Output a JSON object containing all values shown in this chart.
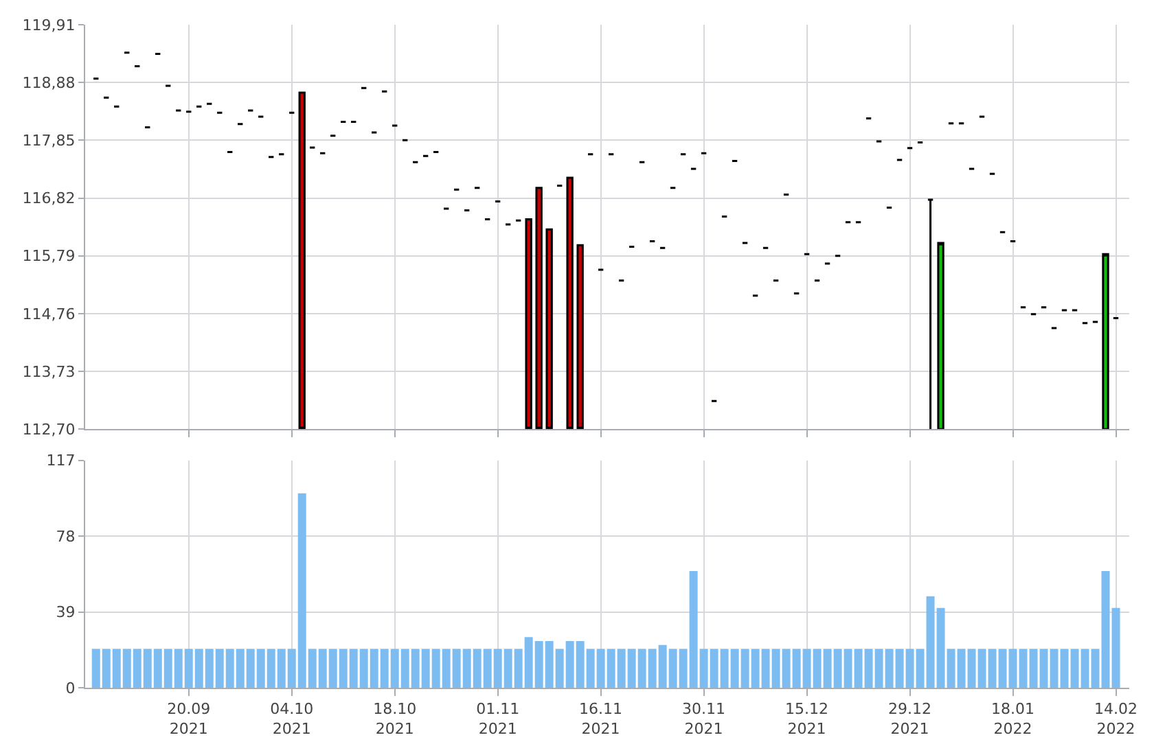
{
  "chart_data": [
    {
      "type": "candlestick",
      "categories": [
        null,
        null,
        null,
        null,
        null,
        null,
        null,
        null,
        null,
        null,
        null,
        null,
        null,
        null,
        null,
        null,
        null,
        null,
        null,
        null,
        null,
        null,
        null,
        null,
        null,
        null,
        null,
        null,
        null,
        null,
        null,
        null,
        null,
        null,
        null,
        null,
        null,
        null,
        null,
        null,
        null,
        null,
        null,
        null,
        null,
        null,
        null,
        null,
        null,
        null,
        null,
        null,
        null,
        null,
        null,
        null,
        null,
        null,
        null,
        null,
        null,
        null,
        null,
        null,
        null,
        null,
        null,
        null,
        null,
        null,
        null,
        null,
        null,
        null,
        null,
        null,
        null,
        null,
        null,
        null,
        null,
        null,
        null,
        null,
        null,
        null,
        null,
        null,
        null,
        null,
        null,
        null,
        null,
        null,
        null,
        null,
        null,
        null,
        null,
        null
      ],
      "ohlc": [
        [
          118.95,
          118.95,
          118.95,
          118.95
        ],
        [
          118.61,
          118.61,
          118.61,
          118.61
        ],
        [
          118.45,
          118.45,
          118.45,
          118.45
        ],
        [
          119.41,
          119.41,
          119.41,
          119.41
        ],
        [
          119.17,
          119.17,
          119.17,
          119.17
        ],
        [
          118.08,
          118.08,
          118.08,
          118.08
        ],
        [
          119.39,
          119.39,
          119.39,
          119.39
        ],
        [
          118.82,
          118.82,
          118.82,
          118.82
        ],
        [
          118.38,
          118.38,
          118.38,
          118.38
        ],
        [
          118.36,
          118.36,
          118.36,
          118.36
        ],
        [
          118.45,
          118.45,
          118.45,
          118.45
        ],
        [
          118.5,
          118.5,
          118.5,
          118.5
        ],
        [
          118.34,
          118.34,
          118.34,
          118.34
        ],
        [
          117.64,
          117.64,
          117.64,
          117.64
        ],
        [
          118.14,
          118.14,
          118.14,
          118.14
        ],
        [
          118.38,
          118.38,
          118.38,
          118.38
        ],
        [
          118.27,
          118.27,
          118.27,
          118.27
        ],
        [
          117.55,
          117.55,
          117.55,
          117.55
        ],
        [
          117.6,
          117.6,
          117.6,
          117.6
        ],
        [
          118.34,
          118.34,
          118.34,
          118.34
        ],
        [
          118.7,
          118.7,
          112.7,
          112.7
        ],
        [
          117.72,
          117.72,
          117.72,
          117.72
        ],
        [
          117.62,
          117.62,
          117.62,
          117.62
        ],
        [
          117.93,
          117.93,
          117.93,
          117.93
        ],
        [
          118.18,
          118.18,
          118.18,
          118.18
        ],
        [
          118.18,
          118.18,
          118.18,
          118.18
        ],
        [
          118.78,
          118.78,
          118.78,
          118.78
        ],
        [
          117.99,
          117.99,
          117.99,
          117.99
        ],
        [
          118.72,
          118.72,
          118.72,
          118.72
        ],
        [
          118.11,
          118.11,
          118.11,
          118.11
        ],
        [
          117.85,
          117.85,
          117.85,
          117.85
        ],
        [
          117.46,
          117.46,
          117.46,
          117.46
        ],
        [
          117.57,
          117.57,
          117.57,
          117.57
        ],
        [
          117.64,
          117.64,
          117.64,
          117.64
        ],
        [
          116.63,
          116.63,
          116.63,
          116.63
        ],
        [
          116.97,
          116.97,
          116.97,
          116.97
        ],
        [
          116.6,
          116.6,
          116.6,
          116.6
        ],
        [
          117.0,
          117.0,
          117.0,
          117.0
        ],
        [
          116.44,
          116.44,
          116.44,
          116.44
        ],
        [
          116.76,
          116.76,
          116.76,
          116.76
        ],
        [
          116.35,
          116.35,
          116.35,
          116.35
        ],
        [
          116.42,
          116.42,
          116.42,
          116.42
        ],
        [
          116.44,
          116.44,
          112.7,
          112.7
        ],
        [
          117.0,
          117.0,
          112.7,
          112.7
        ],
        [
          116.26,
          116.26,
          112.7,
          112.7
        ],
        [
          117.04,
          117.04,
          117.04,
          117.04
        ],
        [
          117.18,
          117.18,
          112.7,
          112.7
        ],
        [
          115.98,
          115.98,
          112.7,
          112.7
        ],
        [
          117.6,
          117.6,
          117.6,
          117.6
        ],
        [
          115.54,
          115.54,
          115.54,
          115.54
        ],
        [
          117.6,
          117.6,
          117.6,
          117.6
        ],
        [
          115.35,
          115.35,
          115.35,
          115.35
        ],
        [
          115.95,
          115.95,
          115.95,
          115.95
        ],
        [
          117.46,
          117.46,
          117.46,
          117.46
        ],
        [
          116.05,
          116.05,
          116.05,
          116.05
        ],
        [
          115.93,
          115.93,
          115.93,
          115.93
        ],
        [
          117.0,
          117.0,
          117.0,
          117.0
        ],
        [
          117.6,
          117.6,
          117.6,
          117.6
        ],
        [
          117.34,
          117.34,
          117.34,
          117.34
        ],
        [
          117.62,
          117.62,
          117.62,
          117.62
        ],
        [
          113.2,
          113.2,
          113.2,
          113.2
        ],
        [
          116.49,
          116.49,
          116.49,
          116.49
        ],
        [
          117.48,
          117.48,
          117.48,
          117.48
        ],
        [
          116.02,
          116.02,
          116.02,
          116.02
        ],
        [
          115.08,
          115.08,
          115.08,
          115.08
        ],
        [
          115.93,
          115.93,
          115.93,
          115.93
        ],
        [
          115.35,
          115.35,
          115.35,
          115.35
        ],
        [
          116.88,
          116.88,
          116.88,
          116.88
        ],
        [
          115.12,
          115.12,
          115.12,
          115.12
        ],
        [
          115.82,
          115.82,
          115.82,
          115.82
        ],
        [
          115.35,
          115.35,
          115.35,
          115.35
        ],
        [
          115.65,
          115.65,
          115.65,
          115.65
        ],
        [
          115.79,
          115.79,
          115.79,
          115.79
        ],
        [
          116.39,
          116.39,
          116.39,
          116.39
        ],
        [
          116.39,
          116.39,
          116.39,
          116.39
        ],
        [
          118.24,
          118.24,
          118.24,
          118.24
        ],
        [
          117.83,
          117.83,
          117.83,
          117.83
        ],
        [
          116.65,
          116.65,
          116.65,
          116.65
        ],
        [
          117.5,
          117.5,
          117.5,
          117.5
        ],
        [
          117.71,
          117.71,
          117.71,
          117.71
        ],
        [
          117.81,
          117.81,
          117.81,
          117.81
        ],
        [
          116.79,
          116.79,
          112.7,
          116.79
        ],
        [
          112.7,
          116.02,
          112.7,
          116.02
        ],
        [
          118.15,
          118.15,
          118.15,
          118.15
        ],
        [
          118.15,
          118.15,
          118.15,
          118.15
        ],
        [
          117.34,
          117.34,
          117.34,
          117.34
        ],
        [
          118.27,
          118.27,
          118.27,
          118.27
        ],
        [
          117.25,
          117.25,
          117.25,
          117.25
        ],
        [
          116.21,
          116.21,
          116.21,
          116.21
        ],
        [
          116.05,
          116.05,
          116.05,
          116.05
        ],
        [
          114.87,
          114.87,
          114.87,
          114.87
        ],
        [
          114.75,
          114.75,
          114.75,
          114.75
        ],
        [
          114.87,
          114.87,
          114.87,
          114.87
        ],
        [
          114.5,
          114.5,
          114.5,
          114.5
        ],
        [
          114.82,
          114.82,
          114.82,
          114.82
        ],
        [
          114.82,
          114.82,
          114.82,
          114.82
        ],
        [
          114.59,
          114.59,
          114.59,
          114.59
        ],
        [
          114.61,
          114.61,
          114.61,
          114.61
        ],
        [
          112.7,
          115.82,
          112.7,
          115.82
        ],
        [
          114.68,
          114.68,
          114.68,
          114.68
        ]
      ],
      "colors": [
        "#000000",
        "#000000",
        "#000000",
        "#000000",
        "#000000",
        "#000000",
        "#000000",
        "#000000",
        "#000000",
        "#000000",
        "#000000",
        "#000000",
        "#000000",
        "#000000",
        "#000000",
        "#000000",
        "#000000",
        "#000000",
        "#000000",
        "#000000",
        "#cc0000",
        "#000000",
        "#000000",
        "#000000",
        "#000000",
        "#000000",
        "#000000",
        "#000000",
        "#000000",
        "#000000",
        "#000000",
        "#000000",
        "#000000",
        "#000000",
        "#000000",
        "#000000",
        "#000000",
        "#000000",
        "#000000",
        "#000000",
        "#000000",
        "#000000",
        "#cc0000",
        "#cc0000",
        "#cc0000",
        "#000000",
        "#cc0000",
        "#cc0000",
        "#000000",
        "#000000",
        "#000000",
        "#000000",
        "#000000",
        "#000000",
        "#000000",
        "#000000",
        "#000000",
        "#000000",
        "#000000",
        "#000000",
        "#000000",
        "#000000",
        "#000000",
        "#000000",
        "#000000",
        "#000000",
        "#000000",
        "#000000",
        "#000000",
        "#000000",
        "#000000",
        "#000000",
        "#000000",
        "#000000",
        "#000000",
        "#000000",
        "#000000",
        "#000000",
        "#000000",
        "#000000",
        "#000000",
        "#000000",
        "#11bb11",
        "#000000",
        "#000000",
        "#000000",
        "#000000",
        "#000000",
        "#000000",
        "#000000",
        "#000000",
        "#000000",
        "#000000",
        "#000000",
        "#000000",
        "#000000",
        "#000000",
        "#000000",
        "#11bb11",
        "#000000"
      ],
      "ylim": [
        112.7,
        119.91
      ],
      "yticks": [
        {
          "value": 112.7,
          "label": "112,70"
        },
        {
          "value": 113.73,
          "label": "113,73"
        },
        {
          "value": 114.76,
          "label": "114,76"
        },
        {
          "value": 115.79,
          "label": "115,79"
        },
        {
          "value": 116.82,
          "label": "116,82"
        },
        {
          "value": 117.85,
          "label": "117,85"
        },
        {
          "value": 118.88,
          "label": "118,88"
        },
        {
          "value": 119.91,
          "label": "119,91"
        }
      ],
      "tick_labels": "y",
      "grid": true
    },
    {
      "type": "bar",
      "categories": [
        null,
        null,
        null,
        null,
        null,
        null,
        null,
        null,
        null,
        "20.09\n2021",
        null,
        null,
        null,
        null,
        null,
        null,
        null,
        null,
        null,
        "04.10\n2021",
        null,
        null,
        null,
        null,
        null,
        null,
        null,
        null,
        null,
        "18.10\n2021",
        null,
        null,
        null,
        null,
        null,
        null,
        null,
        null,
        null,
        "01.11\n2021",
        null,
        null,
        null,
        null,
        null,
        null,
        null,
        null,
        null,
        "16.11\n2021",
        null,
        null,
        null,
        null,
        null,
        null,
        null,
        null,
        null,
        "30.11\n2021",
        null,
        null,
        null,
        null,
        null,
        null,
        null,
        null,
        null,
        "15.12\n2021",
        null,
        null,
        null,
        null,
        null,
        null,
        null,
        null,
        null,
        "29.12\n2021",
        null,
        null,
        null,
        null,
        null,
        null,
        null,
        null,
        null,
        "18.01\n2022",
        null,
        null,
        null,
        null,
        null,
        null,
        null,
        null,
        null,
        "14.02\n2022"
      ],
      "values": [
        20,
        20,
        20,
        20,
        20,
        20,
        20,
        20,
        20,
        20,
        20,
        20,
        20,
        20,
        20,
        20,
        20,
        20,
        20,
        20,
        100,
        20,
        20,
        20,
        20,
        20,
        20,
        20,
        20,
        20,
        20,
        20,
        20,
        20,
        20,
        20,
        20,
        20,
        20,
        20,
        20,
        20,
        26,
        24,
        24,
        20,
        24,
        24,
        20,
        20,
        20,
        20,
        20,
        20,
        20,
        22,
        20,
        20,
        60,
        20,
        20,
        20,
        20,
        20,
        20,
        20,
        20,
        20,
        20,
        20,
        20,
        20,
        20,
        20,
        20,
        20,
        20,
        20,
        20,
        20,
        20,
        47,
        41,
        20,
        20,
        20,
        20,
        20,
        20,
        20,
        20,
        20,
        20,
        20,
        20,
        20,
        20,
        20,
        60,
        41
      ],
      "color": "#7cbcf0",
      "ylim": [
        0,
        117
      ],
      "yticks": [
        0,
        39,
        78,
        117
      ],
      "grid": true
    }
  ]
}
